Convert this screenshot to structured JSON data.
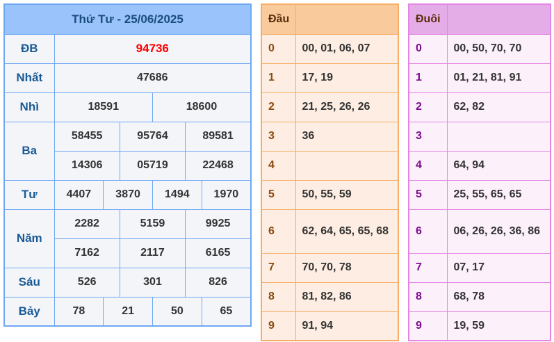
{
  "results": {
    "title": "Thứ Tư - 25/06/2025",
    "prizes": [
      {
        "label": "ĐB",
        "rows": [
          [
            "94736"
          ]
        ],
        "special": true
      },
      {
        "label": "Nhất",
        "rows": [
          [
            "47686"
          ]
        ]
      },
      {
        "label": "Nhì",
        "rows": [
          [
            "18591",
            "18600"
          ]
        ]
      },
      {
        "label": "Ba",
        "rows": [
          [
            "58455",
            "95764",
            "89581"
          ],
          [
            "14306",
            "05719",
            "22468"
          ]
        ]
      },
      {
        "label": "Tư",
        "rows": [
          [
            "4407",
            "3870",
            "1494",
            "1970"
          ]
        ]
      },
      {
        "label": "Năm",
        "rows": [
          [
            "2282",
            "5159",
            "9925"
          ],
          [
            "7162",
            "2117",
            "6165"
          ]
        ]
      },
      {
        "label": "Sáu",
        "rows": [
          [
            "526",
            "301",
            "826"
          ]
        ]
      },
      {
        "label": "Bảy",
        "rows": [
          [
            "78",
            "21",
            "50",
            "65"
          ]
        ]
      }
    ]
  },
  "dau": {
    "header": "Đầu",
    "rows": [
      {
        "digit": "0",
        "values": "00, 01, 06, 07"
      },
      {
        "digit": "1",
        "values": "17, 19"
      },
      {
        "digit": "2",
        "values": "21, 25, 26, 26"
      },
      {
        "digit": "3",
        "values": "36"
      },
      {
        "digit": "4",
        "values": ""
      },
      {
        "digit": "5",
        "values": "50, 55, 59"
      },
      {
        "digit": "6",
        "values": "62, 64, 65, 65, 68"
      },
      {
        "digit": "7",
        "values": "70, 70, 78"
      },
      {
        "digit": "8",
        "values": "81, 82, 86"
      },
      {
        "digit": "9",
        "values": "91, 94"
      }
    ]
  },
  "duoi": {
    "header": "Đuôi",
    "rows": [
      {
        "digit": "0",
        "values": "00, 50, 70, 70"
      },
      {
        "digit": "1",
        "values": "01, 21, 81, 91"
      },
      {
        "digit": "2",
        "values": "62, 82"
      },
      {
        "digit": "3",
        "values": ""
      },
      {
        "digit": "4",
        "values": "64, 94"
      },
      {
        "digit": "5",
        "values": "25, 55, 65, 65"
      },
      {
        "digit": "6",
        "values": "06, 26, 26, 36, 86"
      },
      {
        "digit": "7",
        "values": "07, 17"
      },
      {
        "digit": "8",
        "values": "68, 78"
      },
      {
        "digit": "9",
        "values": "19, 59"
      }
    ]
  },
  "colors": {
    "results_border": "#6ea8f5",
    "special_prize": "#ff0000",
    "dau_border": "#f8ae66",
    "duoi_border": "#e484e4"
  }
}
